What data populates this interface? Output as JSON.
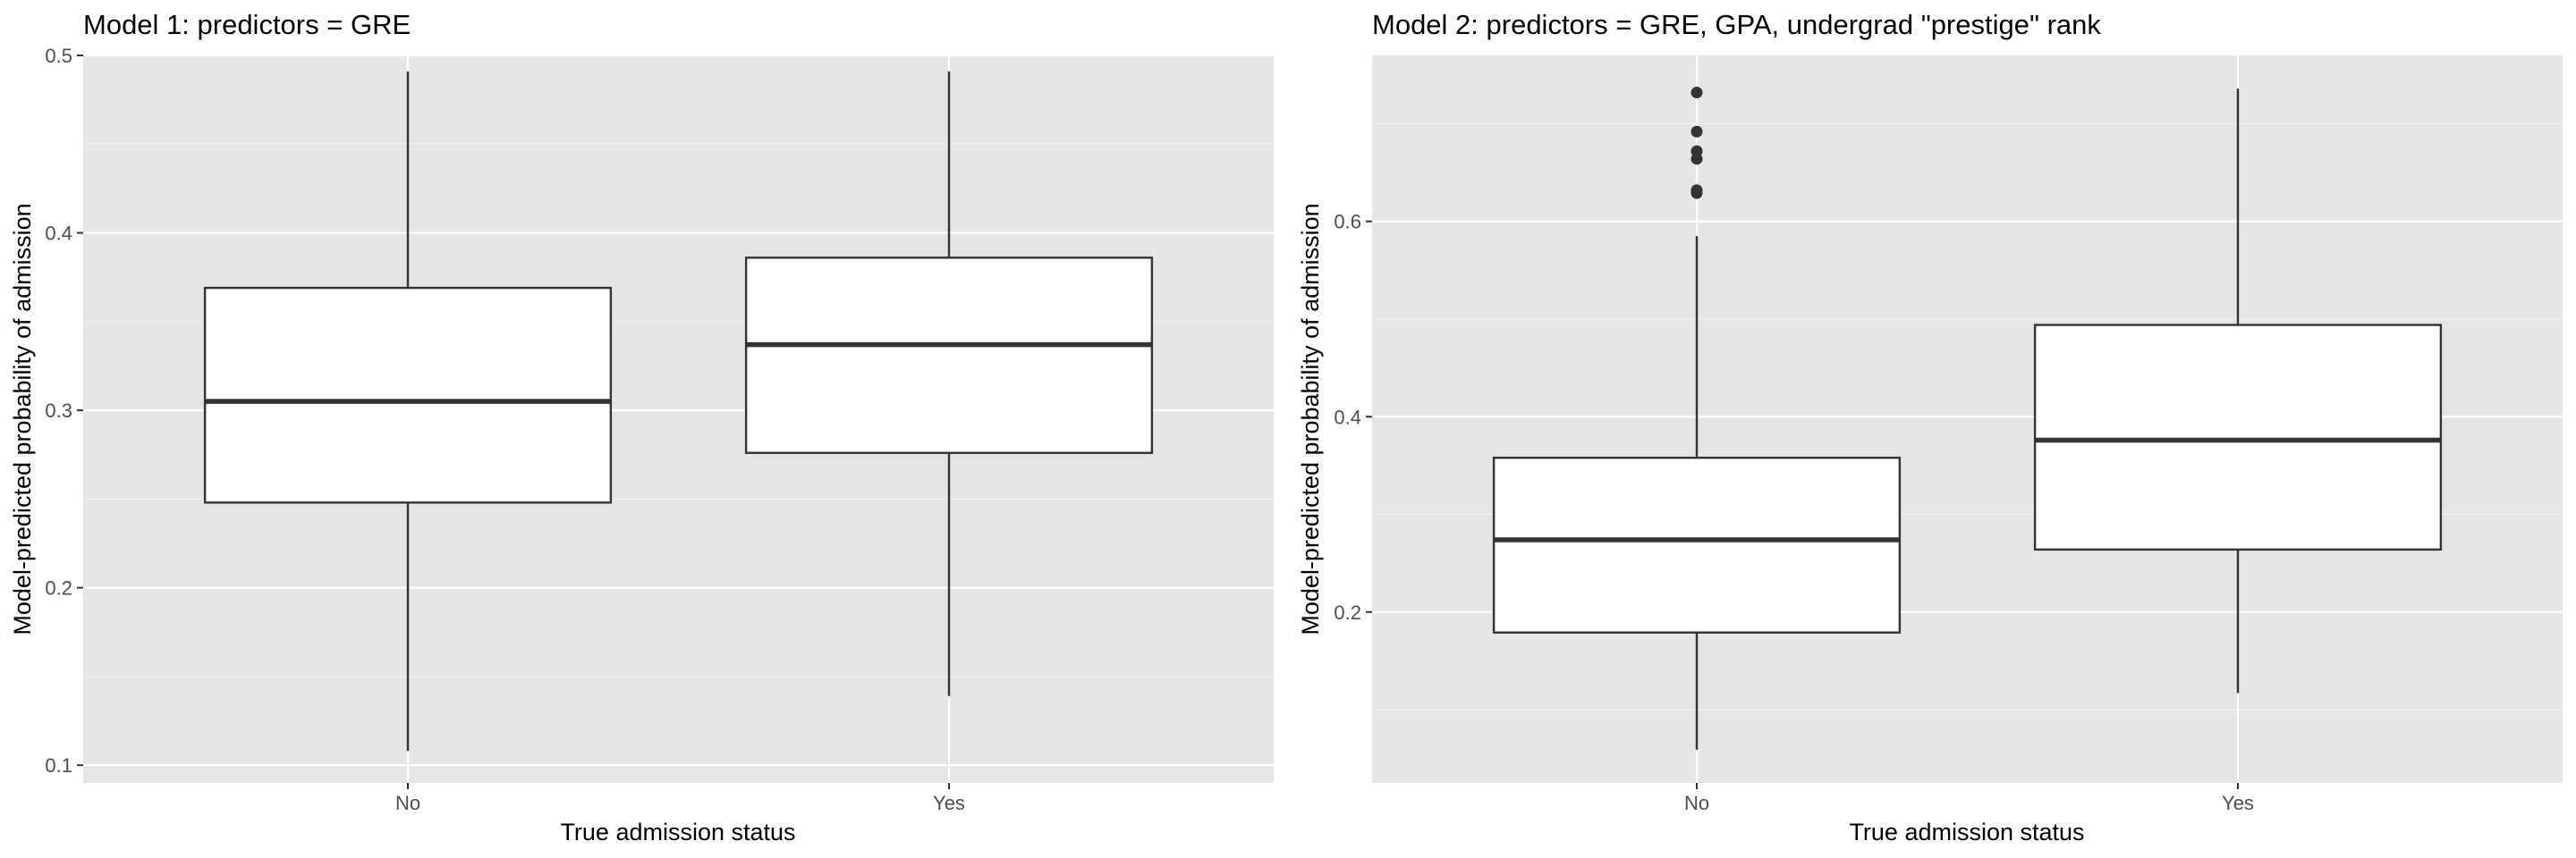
{
  "chart_data": [
    {
      "type": "boxplot",
      "title": "Model 1: predictors = GRE",
      "xlabel": "True admission status",
      "ylabel": "Model-predicted probability of admission",
      "categories": [
        "No",
        "Yes"
      ],
      "ylim": [
        0.09,
        0.5
      ],
      "yticks": [
        0.1,
        0.2,
        0.3,
        0.4,
        0.5
      ],
      "ytick_labels": [
        "0.1",
        "0.2",
        "0.3",
        "0.4",
        "0.5"
      ],
      "grid": true,
      "boxes": [
        {
          "category": "No",
          "whisker_low": 0.108,
          "q1": 0.248,
          "median": 0.305,
          "q3": 0.369,
          "whisker_high": 0.491,
          "outliers": []
        },
        {
          "category": "Yes",
          "whisker_low": 0.139,
          "q1": 0.276,
          "median": 0.337,
          "q3": 0.386,
          "whisker_high": 0.491,
          "outliers": []
        }
      ]
    },
    {
      "type": "boxplot",
      "title": "Model 2: predictors = GRE, GPA, undergrad \"prestige\" rank",
      "xlabel": "True admission status",
      "ylabel": "Model-predicted probability of admission",
      "categories": [
        "No",
        "Yes"
      ],
      "ylim": [
        0.025,
        0.77
      ],
      "yticks": [
        0.2,
        0.4,
        0.6
      ],
      "ytick_labels": [
        "0.2",
        "0.4",
        "0.6"
      ],
      "grid": true,
      "boxes": [
        {
          "category": "No",
          "whisker_low": 0.059,
          "q1": 0.179,
          "median": 0.274,
          "q3": 0.358,
          "whisker_high": 0.585,
          "outliers": [
            0.629,
            0.632,
            0.664,
            0.672,
            0.692,
            0.732
          ]
        },
        {
          "category": "Yes",
          "whisker_low": 0.117,
          "q1": 0.264,
          "median": 0.376,
          "q3": 0.494,
          "whisker_high": 0.736,
          "outliers": []
        }
      ]
    }
  ]
}
